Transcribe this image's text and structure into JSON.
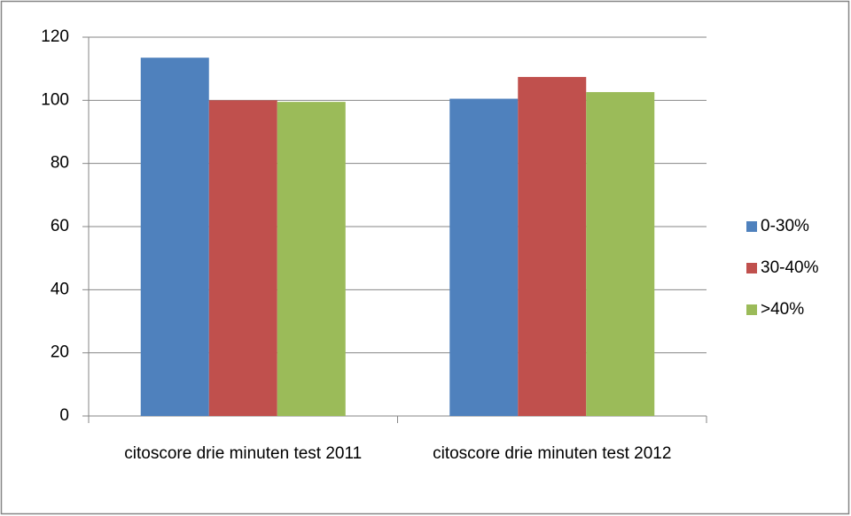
{
  "chart_data": {
    "type": "bar",
    "categories": [
      "citoscore drie minuten test 2011",
      "citoscore drie minuten test 2012"
    ],
    "series": [
      {
        "name": "0-30%",
        "color": "#4f81bd",
        "values": [
          113.5,
          100.5
        ]
      },
      {
        "name": "30-40%",
        "color": "#c0504d",
        "values": [
          100,
          107.4
        ]
      },
      {
        "name": ">40%",
        "color": "#9bbb59",
        "values": [
          99.5,
          102.6
        ]
      }
    ],
    "ylim": [
      0,
      120
    ],
    "yticks": [
      0,
      20,
      40,
      60,
      80,
      100,
      120
    ],
    "grid": true,
    "legend": "right"
  }
}
